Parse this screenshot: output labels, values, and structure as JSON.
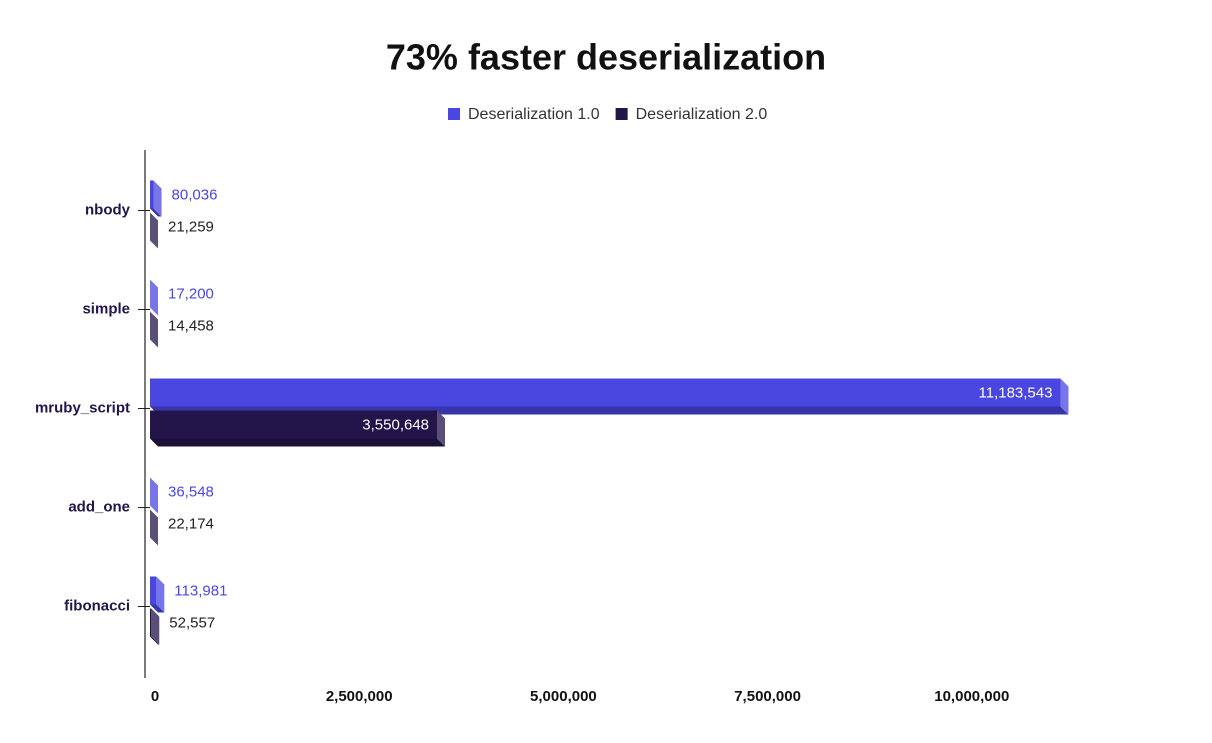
{
  "chart_data": {
    "type": "bar",
    "orientation": "horizontal",
    "title": "73% faster deserialization",
    "categories": [
      "nbody",
      "simple",
      "mruby_script",
      "add_one",
      "fibonacci"
    ],
    "series": [
      {
        "name": "Deserialization 1.0",
        "color": "#4a47e0",
        "values": [
          80036,
          17200,
          11183543,
          36548,
          113981
        ],
        "value_labels": [
          "80,036",
          "17,200",
          "11,183,543",
          "36,548",
          "113,981"
        ]
      },
      {
        "name": "Deserialization 2.0",
        "color": "#23154a",
        "values": [
          21259,
          14458,
          3550648,
          22174,
          52557
        ],
        "value_labels": [
          "21,259",
          "14,458",
          "3,550,648",
          "22,174",
          "52,557"
        ]
      }
    ],
    "xlim": [
      0,
      12500000
    ],
    "xticks": [
      0,
      {
        "value": 2500000,
        "label": "2,500,000"
      },
      {
        "value": 5000000,
        "label": "5,000,000"
      },
      {
        "value": 7500000,
        "label": "7,500,000"
      },
      {
        "value": 10000000,
        "label": "10,000,000"
      }
    ],
    "legend": "top"
  }
}
